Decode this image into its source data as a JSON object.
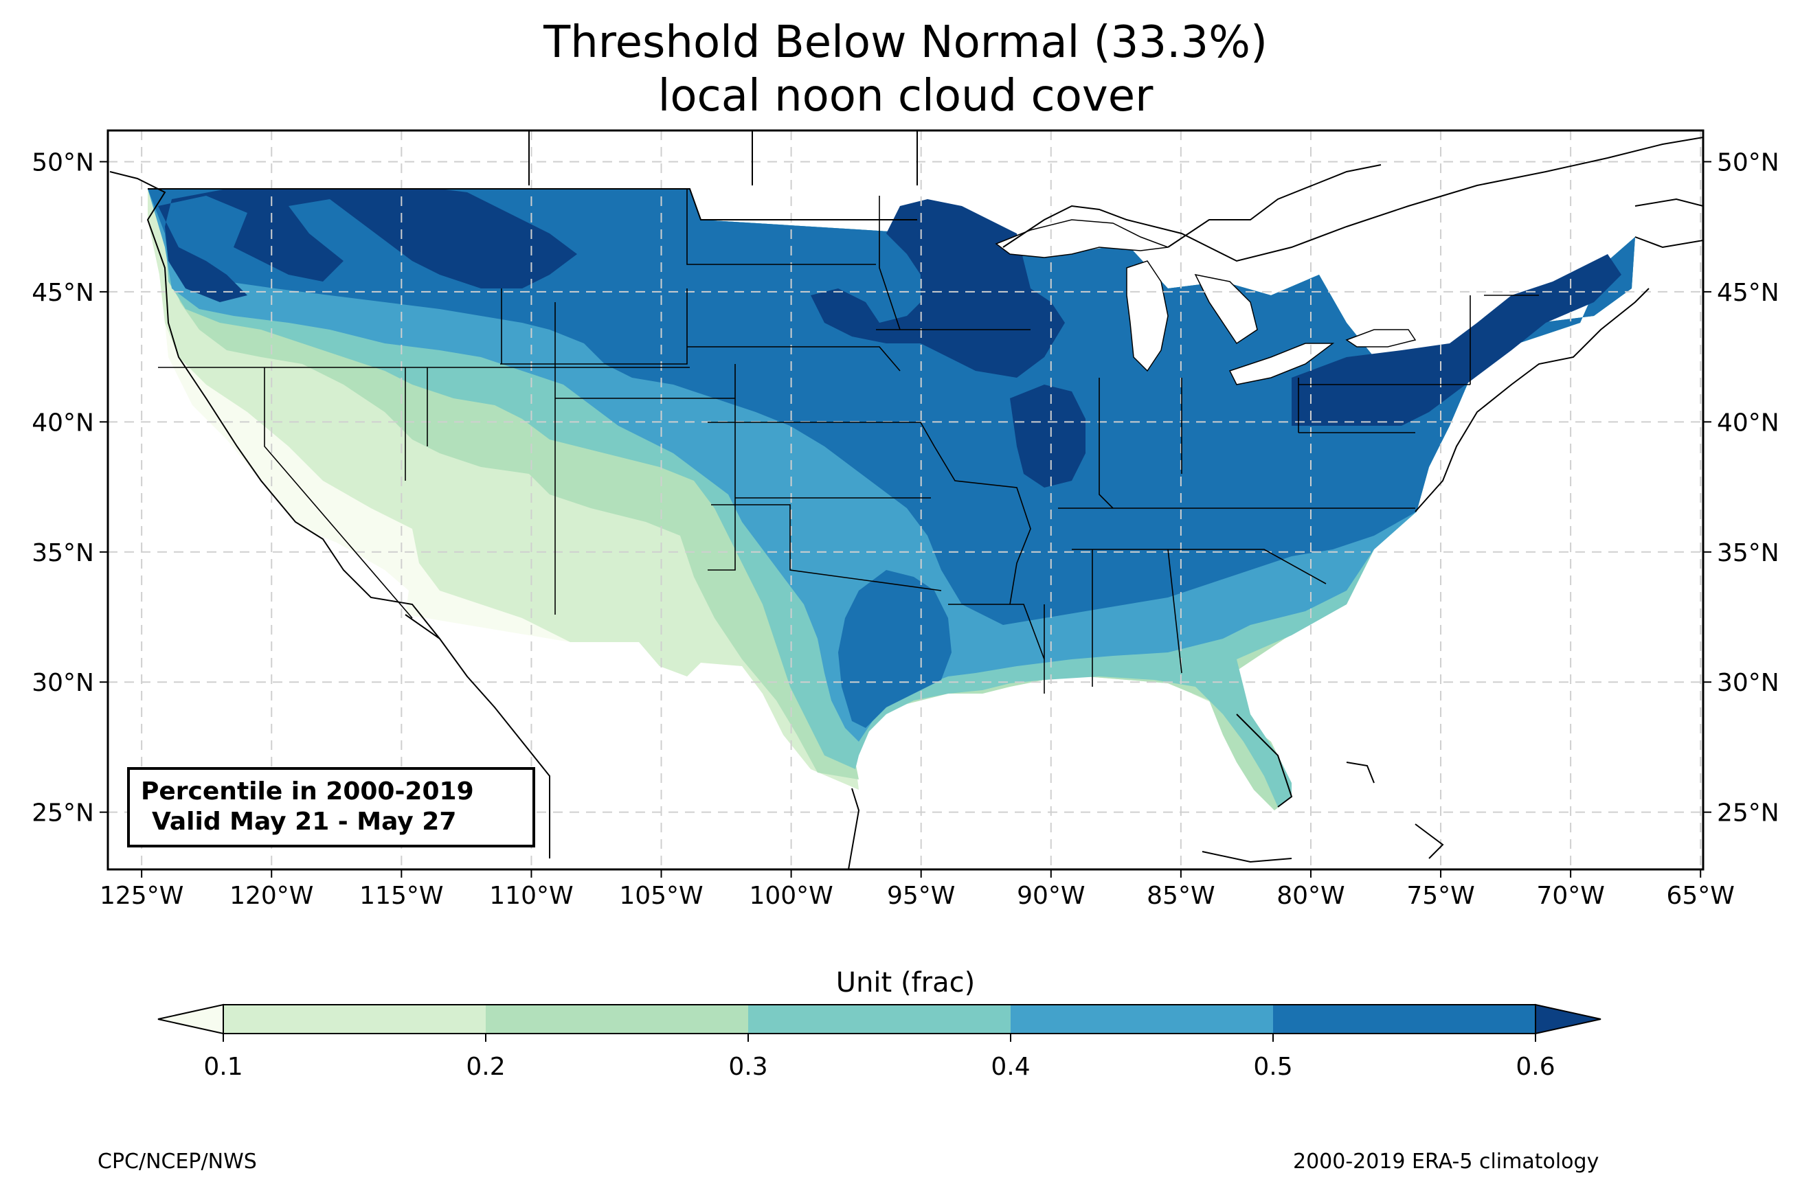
{
  "title": {
    "line1": "Threshold Below Normal (33.3%)",
    "line2": "local noon cloud cover"
  },
  "map": {
    "lon_ticks": [
      "125°W",
      "120°W",
      "115°W",
      "110°W",
      "105°W",
      "100°W",
      "95°W",
      "90°W",
      "85°W",
      "80°W",
      "75°W",
      "70°W",
      "65°W"
    ],
    "lat_ticks": [
      "50°N",
      "45°N",
      "40°N",
      "35°N",
      "30°N",
      "25°N"
    ],
    "gridlines": true,
    "projection_extent": {
      "lon_min": -126.3,
      "lon_max": -64.9,
      "lat_min": 22.8,
      "lat_max": 51.2
    }
  },
  "info_box": {
    "line1": "Percentile in 2000-2019",
    "line2": "Valid May 21 - May 27",
    "placement": "bottom-left"
  },
  "colorbar": {
    "label": "Unit (frac)",
    "ticks": [
      "0.1",
      "0.2",
      "0.3",
      "0.4",
      "0.5",
      "0.6"
    ],
    "colors": {
      "below_0.1": "#f7fcf0",
      "0.1-0.2": "#d6efd0",
      "0.2-0.3": "#b2e0bb",
      "0.3-0.4": "#7bcbc4",
      "0.4-0.5": "#43a2cb",
      "0.5-0.6": "#1a72b1",
      "above_0.6": "#0b4083"
    }
  },
  "footer": {
    "left": "CPC/NCEP/NWS",
    "right": "2000-2019 ERA-5 climatology"
  }
}
